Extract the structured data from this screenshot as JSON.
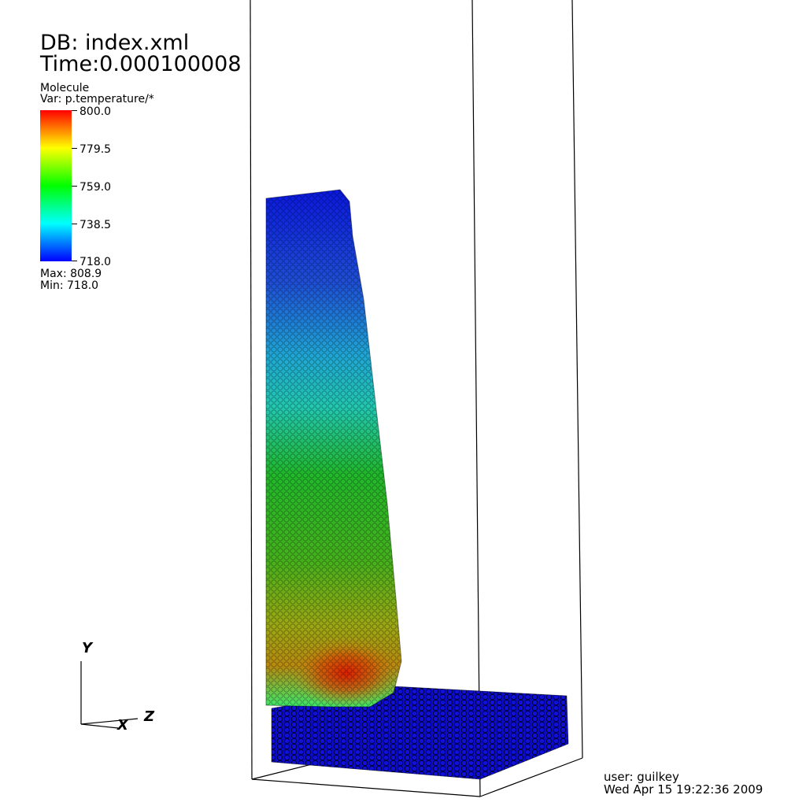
{
  "header": {
    "db": "DB: index.xml",
    "time": "Time:0.000100008"
  },
  "legend": {
    "plot_name": "Molecule",
    "variable": "Var: p.temperature/*",
    "ticks": [
      "800.0",
      "779.5",
      "759.0",
      "738.5",
      "718.0"
    ],
    "max": "Max:  808.9",
    "min": "Min:  718.0",
    "colors": [
      "#0000ff",
      "#00ffff",
      "#00ff00",
      "#ffff00",
      "#ff0000"
    ]
  },
  "axes": {
    "x": "X",
    "y": "Y",
    "z": "Z"
  },
  "footer": {
    "user": "user: guilkey",
    "date": "Wed Apr 15 19:22:36 2009"
  }
}
